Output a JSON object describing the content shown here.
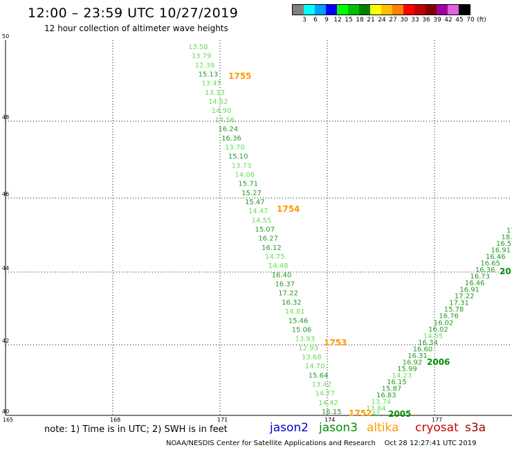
{
  "header": {
    "title": "12:00 – 23:59 UTC 10/27/2019",
    "subtitle": "12 hour collection of altimeter wave heights"
  },
  "legend": {
    "labels": [
      "3",
      "6",
      "9",
      "12",
      "15",
      "18",
      "21",
      "24",
      "27",
      "30",
      "33",
      "36",
      "39",
      "42",
      "45",
      "70",
      "(ft)"
    ],
    "colors": [
      "#808080",
      "#00ffff",
      "#00a0ff",
      "#0000ff",
      "#00ff00",
      "#00c000",
      "#008000",
      "#ffff00",
      "#ffc000",
      "#ff8000",
      "#ff0000",
      "#c00000",
      "#800000",
      "#a000a0",
      "#e060e0",
      "#000000"
    ]
  },
  "axes": {
    "x_ticks": [
      "165",
      "168",
      "171",
      "174",
      "177"
    ],
    "y_ticks": [
      "40",
      "42",
      "44",
      "46",
      "48",
      "50"
    ]
  },
  "footer": {
    "note": "note: 1) Time is in UTC; 2) SWH is in feet",
    "satellites": [
      {
        "name": "jason2",
        "color": "#0000cc"
      },
      {
        "name": "jason3",
        "color": "#009000"
      },
      {
        "name": "altika",
        "color": "#ff9900"
      },
      {
        "name": "cryosat",
        "color": "#cc0000"
      },
      {
        "name": "s3a",
        "color": "#990000"
      }
    ],
    "credit": "NOAA/NESDIS Center for Satellite Applications and Research",
    "timestamp": "Oct 28 12:27:41 UTC 2019"
  },
  "tracks": {
    "left": [
      {
        "v": "13.58",
        "c": "#66dd55"
      },
      {
        "v": "13.79",
        "c": "#66dd55"
      },
      {
        "v": "12.39",
        "c": "#66dd55"
      },
      {
        "v": "15.13",
        "c": "#229922"
      },
      {
        "v": "13.45",
        "c": "#66dd55"
      },
      {
        "v": "13.13",
        "c": "#66dd55"
      },
      {
        "v": "14.62",
        "c": "#66dd55"
      },
      {
        "v": "14.90",
        "c": "#66dd55"
      },
      {
        "v": "14.56",
        "c": "#66dd55"
      },
      {
        "v": "16.24",
        "c": "#229922"
      },
      {
        "v": "16.36",
        "c": "#229922"
      },
      {
        "v": "13.70",
        "c": "#66dd55"
      },
      {
        "v": "15.10",
        "c": "#229922"
      },
      {
        "v": "13.73",
        "c": "#66dd55"
      },
      {
        "v": "14.06",
        "c": "#66dd55"
      },
      {
        "v": "15.71",
        "c": "#229922"
      },
      {
        "v": "15.27",
        "c": "#229922"
      },
      {
        "v": "15.47",
        "c": "#229922"
      },
      {
        "v": "14.47",
        "c": "#66dd55"
      },
      {
        "v": "14.55",
        "c": "#66dd55"
      },
      {
        "v": "15.07",
        "c": "#229922"
      },
      {
        "v": "16.27",
        "c": "#229922"
      },
      {
        "v": "16.12",
        "c": "#229922"
      },
      {
        "v": "14.75",
        "c": "#66dd55"
      },
      {
        "v": "14.48",
        "c": "#66dd55"
      },
      {
        "v": "16.40",
        "c": "#229922"
      },
      {
        "v": "16.37",
        "c": "#229922"
      },
      {
        "v": "17.22",
        "c": "#229922"
      },
      {
        "v": "16.32",
        "c": "#229922"
      },
      {
        "v": "14.81",
        "c": "#66dd55"
      },
      {
        "v": "15.46",
        "c": "#229922"
      },
      {
        "v": "15.06",
        "c": "#229922"
      },
      {
        "v": "13.93",
        "c": "#66dd55"
      },
      {
        "v": "12.93",
        "c": "#66dd55"
      },
      {
        "v": "13.68",
        "c": "#66dd55"
      },
      {
        "v": "14.70",
        "c": "#66dd55"
      },
      {
        "v": "15.64",
        "c": "#229922"
      },
      {
        "v": "13.42",
        "c": "#66dd55"
      },
      {
        "v": "14.77",
        "c": "#66dd55"
      },
      {
        "v": "14.42",
        "c": "#66dd55"
      },
      {
        "v": "16.15",
        "c": "#229922"
      }
    ],
    "right": [
      {
        "v": "13.84",
        "c": "#66dd55"
      },
      {
        "v": "13.74",
        "c": "#66dd55"
      },
      {
        "v": "16.83",
        "c": "#229922"
      },
      {
        "v": "15.87",
        "c": "#229922"
      },
      {
        "v": "16.15",
        "c": "#229922"
      },
      {
        "v": "14.23",
        "c": "#66dd55"
      },
      {
        "v": "15.99",
        "c": "#229922"
      },
      {
        "v": "16.92",
        "c": "#229922"
      },
      {
        "v": "16.31",
        "c": "#229922"
      },
      {
        "v": "16.60",
        "c": "#229922"
      },
      {
        "v": "16.34",
        "c": "#229922"
      },
      {
        "v": "14.55",
        "c": "#66dd55"
      },
      {
        "v": "16.02",
        "c": "#229922"
      },
      {
        "v": "16.02",
        "c": "#229922"
      },
      {
        "v": "16.76",
        "c": "#229922"
      },
      {
        "v": "15.78",
        "c": "#229922"
      },
      {
        "v": "17.31",
        "c": "#229922"
      },
      {
        "v": "17.22",
        "c": "#229922"
      },
      {
        "v": "16.91",
        "c": "#229922"
      },
      {
        "v": "16.46",
        "c": "#229922"
      },
      {
        "v": "16.73",
        "c": "#229922"
      },
      {
        "v": "16.36",
        "c": "#229922"
      },
      {
        "v": "16.65",
        "c": "#229922"
      },
      {
        "v": "16.46",
        "c": "#229922"
      },
      {
        "v": "16.91",
        "c": "#229922"
      },
      {
        "v": "16.50",
        "c": "#229922"
      },
      {
        "v": "18.",
        "c": "#229922"
      },
      {
        "v": "17",
        "c": "#229922"
      }
    ],
    "bottom_partial": "41"
  },
  "pass_labels": [
    {
      "text": "1755",
      "color": "#ff9900"
    },
    {
      "text": "1754",
      "color": "#ff9900"
    },
    {
      "text": "1753",
      "color": "#ff9900"
    },
    {
      "text": "1752",
      "color": "#ff9900"
    },
    {
      "text": "2005",
      "color": "#009000"
    },
    {
      "text": "2006",
      "color": "#009000"
    },
    {
      "text": "20",
      "color": "#009000"
    }
  ]
}
